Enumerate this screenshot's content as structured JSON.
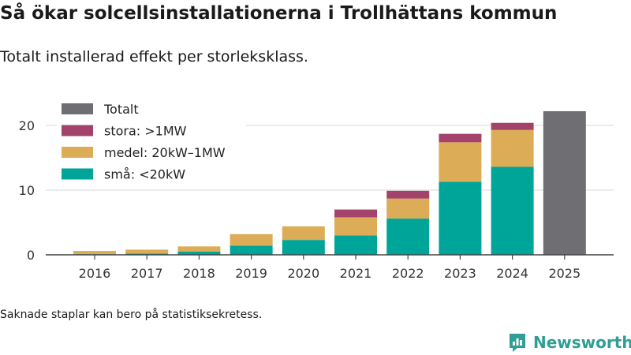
{
  "page": {
    "title": "Så ökar solcellsinstallationerna i Trollhättans kommun",
    "subtitle": "Totalt installerad effekt per storleksklass.",
    "footnote": "Saknade staplar kan bero på statistiksekretess.",
    "brand": "Newsworthy"
  },
  "colors": {
    "sma": "#00a59a",
    "medel": "#dcac56",
    "stora": "#a3426a",
    "totalt": "#6e6e73",
    "grid": "#e0e0e0",
    "axis": "#444444",
    "brand": "#2f9e94"
  },
  "chart_data": {
    "type": "bar",
    "stacked": true,
    "title": "Så ökar solcellsinstallationerna i Trollhättans kommun",
    "subtitle": "Totalt installerad effekt per storleksklass.",
    "xlabel": "",
    "ylabel": "",
    "ylim": [
      0,
      22.5
    ],
    "yticks": [
      0,
      10,
      20
    ],
    "grid": true,
    "legend_position": "top-left",
    "categories": [
      "2016",
      "2017",
      "2018",
      "2019",
      "2020",
      "2021",
      "2022",
      "2023",
      "2024",
      "2025"
    ],
    "series": [
      {
        "name": "små: <20kW",
        "key": "sma",
        "values": [
          0.1,
          0.2,
          0.5,
          1.4,
          2.3,
          3.0,
          5.6,
          11.3,
          13.6,
          null
        ]
      },
      {
        "name": "medel: 20kW–1MW",
        "key": "medel",
        "values": [
          0.5,
          0.6,
          0.8,
          1.8,
          2.1,
          2.8,
          3.1,
          6.1,
          5.7,
          null
        ]
      },
      {
        "name": "stora: >1MW",
        "key": "stora",
        "values": [
          null,
          null,
          null,
          null,
          null,
          1.2,
          1.2,
          1.3,
          1.1,
          null
        ]
      },
      {
        "name": "Totalt",
        "key": "totalt",
        "values": [
          null,
          null,
          null,
          null,
          null,
          null,
          null,
          null,
          null,
          22.2
        ]
      }
    ],
    "legend": [
      "Totalt",
      "stora: >1MW",
      "medel: 20kW–1MW",
      "små: <20kW"
    ]
  }
}
